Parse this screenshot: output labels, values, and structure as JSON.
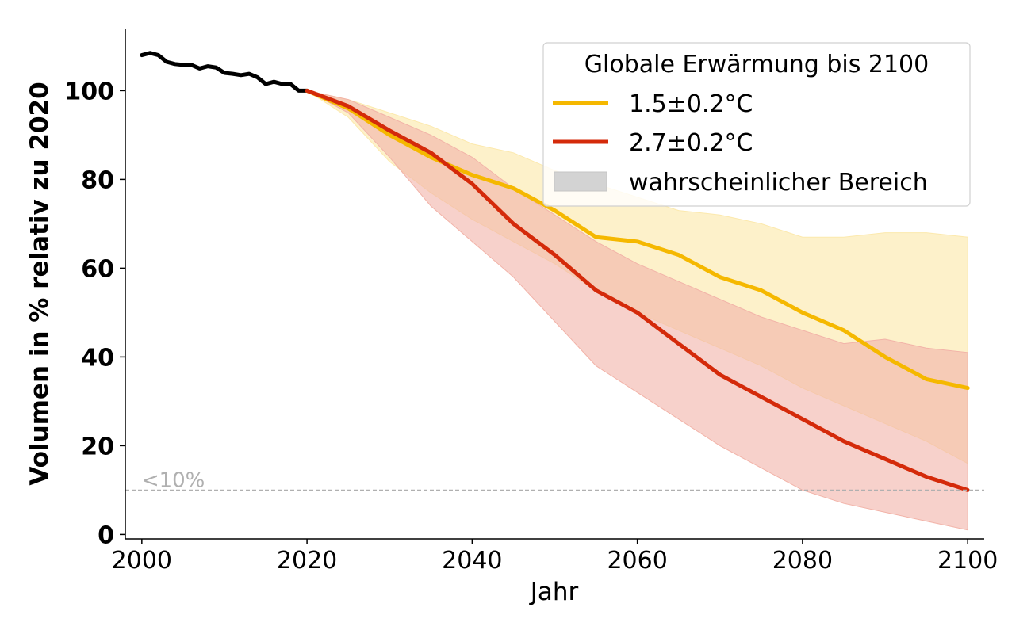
{
  "chart_data": {
    "type": "line",
    "xlabel": "Jahr",
    "ylabel": "Volumen in % relativ zu 2020",
    "xlim": [
      1998,
      2102
    ],
    "ylim": [
      -1,
      114
    ],
    "xticks": [
      2000,
      2020,
      2040,
      2060,
      2080,
      2100
    ],
    "yticks": [
      0,
      20,
      40,
      60,
      80,
      100
    ],
    "grid": false,
    "legend": {
      "title": "Globale Erwärmung bis 2100",
      "placement": "top-right",
      "entries": [
        "1.5±0.2°C",
        "2.7±0.2°C",
        "wahrscheinlicher Bereich"
      ]
    },
    "threshold": {
      "y": 10,
      "label": "<10%",
      "color": "#b0b0b0"
    },
    "historical": {
      "color": "#000000",
      "x": [
        2000,
        2001,
        2002,
        2003,
        2004,
        2005,
        2006,
        2007,
        2008,
        2009,
        2010,
        2011,
        2012,
        2013,
        2014,
        2015,
        2016,
        2017,
        2018,
        2019,
        2020
      ],
      "y": [
        108,
        108.5,
        108,
        106.5,
        106,
        105.8,
        105.8,
        105,
        105.5,
        105.2,
        104,
        103.8,
        103.5,
        103.8,
        103,
        101.5,
        102,
        101.5,
        101.5,
        100,
        100
      ]
    },
    "series": [
      {
        "name": "1.5±0.2°C",
        "color": "#f5b800",
        "band_color": "#fce9ad",
        "x": [
          2020,
          2025,
          2030,
          2035,
          2040,
          2045,
          2050,
          2055,
          2060,
          2065,
          2070,
          2075,
          2080,
          2085,
          2090,
          2095,
          2100
        ],
        "y": [
          100,
          96,
          90,
          85,
          81,
          78,
          73,
          67,
          66,
          63,
          58,
          55,
          50,
          46,
          40,
          35,
          33
        ],
        "low": [
          100,
          94,
          84,
          77,
          71,
          66,
          61,
          55,
          50,
          46,
          42,
          38,
          33,
          29,
          25,
          21,
          16
        ],
        "high": [
          100,
          98,
          95,
          92,
          88,
          86,
          82,
          79,
          76,
          73,
          72,
          70,
          67,
          67,
          68,
          68,
          67
        ]
      },
      {
        "name": "2.7±0.2°C",
        "color": "#d42a0a",
        "band_color": "#f2b3a8",
        "x": [
          2020,
          2025,
          2030,
          2035,
          2040,
          2045,
          2050,
          2055,
          2060,
          2065,
          2070,
          2075,
          2080,
          2085,
          2090,
          2095,
          2100
        ],
        "y": [
          100,
          96.5,
          91,
          86,
          79,
          70,
          63,
          55,
          50,
          43,
          36,
          31,
          26,
          21,
          17,
          13,
          10
        ],
        "low": [
          100,
          95,
          85,
          74,
          66,
          58,
          48,
          38,
          32,
          26,
          20,
          15,
          10,
          7,
          5,
          3,
          1
        ],
        "high": [
          100,
          98,
          94,
          90,
          85,
          78,
          72,
          66,
          61,
          57,
          53,
          49,
          46,
          43,
          44,
          42,
          41
        ]
      }
    ]
  }
}
